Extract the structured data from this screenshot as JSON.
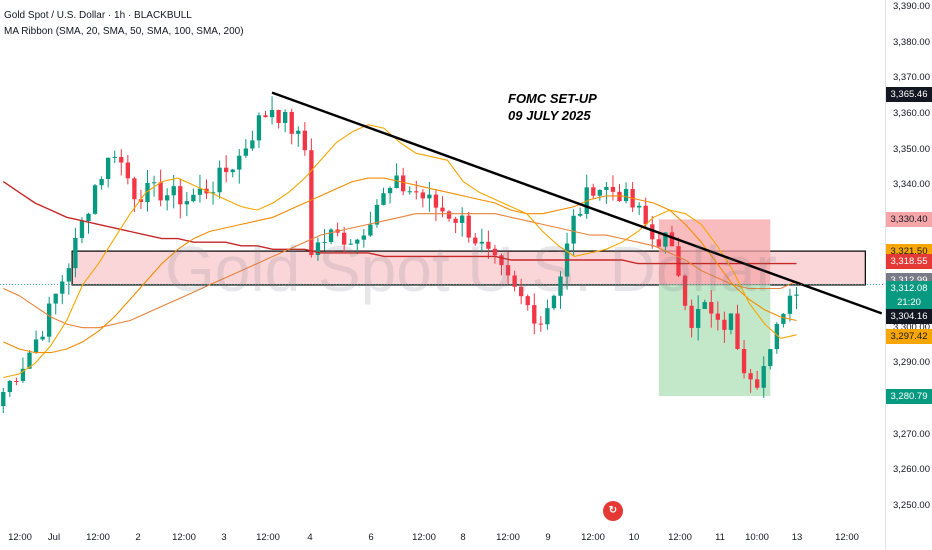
{
  "header": {
    "title": "Gold Spot / U.S. Dollar · 1h · BLACKBULL",
    "indicator": "MA Ribbon (SMA, 20, SMA, 50, SMA, 100, SMA, 200)"
  },
  "watermark": "Gold Spot U.S. Dollar",
  "annotation": {
    "line1": "FOMC SET-UP",
    "line2": "09 JULY 2025"
  },
  "colors": {
    "bull": "#089981",
    "bear": "#f23645",
    "sma20": "#f7a600",
    "sma50": "#f28c00",
    "sma100": "#e8833a",
    "sma200": "#c62828",
    "zone_fill": "#f8c8cc",
    "stop": "#f6a5a8",
    "target": "#b9e4c0",
    "trendline": "#000000"
  },
  "chart_data": {
    "type": "candlestick",
    "ylim": [
      3246,
      3392
    ],
    "y_ticks": [
      "3,390.00",
      "3,380.00",
      "3,370.00",
      "3,360.00",
      "3,350.00",
      "3,340.00",
      "3,300.00",
      "3,290.00",
      "3,270.00",
      "3,260.00",
      "3,250.00"
    ],
    "x_labels": [
      "12:00",
      "Jul",
      "12:00",
      "2",
      "12:00",
      "3",
      "12:00",
      "4",
      "6",
      "12:00",
      "8",
      "12:00",
      "9",
      "12:00",
      "10",
      "12:00",
      "11",
      "10:00",
      "13",
      "12:00"
    ],
    "price_badges": [
      {
        "value": "3,365.46",
        "kind": "dark"
      },
      {
        "value": "3,330.40",
        "kind": "stop_light"
      },
      {
        "value": "3,321.50",
        "kind": "orange"
      },
      {
        "value": "3,318.55",
        "kind": "red"
      },
      {
        "value": "3,313.24",
        "kind": "orange"
      },
      {
        "value": "3,312.99",
        "kind": "gray"
      },
      {
        "value": "3,312.08",
        "kind": "green"
      },
      {
        "value": "21:20",
        "kind": "green"
      },
      {
        "value": "3,304.16",
        "kind": "dark"
      },
      {
        "value": "3,297.42",
        "kind": "orange"
      },
      {
        "value": "3,280.79",
        "kind": "green"
      }
    ],
    "zone": {
      "top": 3321.5,
      "bottom": 3312.0,
      "i_start": 11,
      "i_end": 132
    },
    "trendline": {
      "from": {
        "i": 41,
        "price": 3366
      },
      "to": {
        "i": 134,
        "price": 3304
      }
    },
    "position": {
      "entry": 3312.08,
      "stop": 3330.4,
      "target": 3280.79,
      "i_start": 100,
      "i_end": 117
    },
    "sma20": [
      3286,
      3287,
      3290,
      3295,
      3302,
      3312,
      3318,
      3325,
      3332,
      3338,
      3341,
      3342,
      3340,
      3338,
      3336,
      3334,
      3333,
      3335,
      3338,
      3342,
      3347,
      3352,
      3355,
      3357,
      3356,
      3352,
      3349,
      3348,
      3347,
      3341,
      3338,
      3336,
      3334,
      3332,
      3327,
      3323,
      3320,
      3321,
      3322,
      3324,
      3327,
      3331,
      3333,
      3332,
      3329,
      3323,
      3316,
      3307,
      3301,
      3297,
      3298
    ],
    "sma50": [
      3296,
      3294,
      3293,
      3293,
      3294,
      3296,
      3299,
      3303,
      3308,
      3313,
      3318,
      3322,
      3325,
      3327,
      3328,
      3329,
      3330,
      3331,
      3333,
      3335,
      3337,
      3339,
      3341,
      3342,
      3342,
      3341,
      3340,
      3339,
      3338,
      3337,
      3336,
      3335,
      3333,
      3332,
      3332,
      3333,
      3334,
      3336,
      3337,
      3337,
      3336,
      3335,
      3333,
      3329,
      3324,
      3318,
      3312,
      3308,
      3305,
      3303,
      3302
    ],
    "sma100": [
      3311,
      3309,
      3306,
      3303,
      3301,
      3300,
      3300,
      3301,
      3302,
      3304,
      3306,
      3308,
      3310,
      3312,
      3314,
      3316,
      3318,
      3320,
      3322,
      3324,
      3326,
      3327,
      3328,
      3329,
      3330,
      3331,
      3332,
      3332,
      3332,
      3332,
      3332,
      3332,
      3331,
      3330,
      3329,
      3328,
      3327,
      3326,
      3326,
      3325,
      3324,
      3323,
      3321,
      3319,
      3316,
      3314,
      3312,
      3311,
      3311,
      3311,
      3313
    ],
    "sma200": [
      3341,
      3338,
      3335,
      3333,
      3331,
      3330,
      3329,
      3328,
      3327,
      3326,
      3325,
      3325,
      3324,
      3324,
      3324,
      3323,
      3323,
      3322,
      3322,
      3322,
      3321,
      3321,
      3321,
      3321,
      3320,
      3320,
      3320,
      3320,
      3320,
      3320,
      3320,
      3320,
      3319,
      3319,
      3319,
      3319,
      3319,
      3319,
      3319,
      3319,
      3318,
      3318,
      3318,
      3318,
      3318,
      3318,
      3318,
      3318,
      3318,
      3318,
      3318
    ]
  }
}
